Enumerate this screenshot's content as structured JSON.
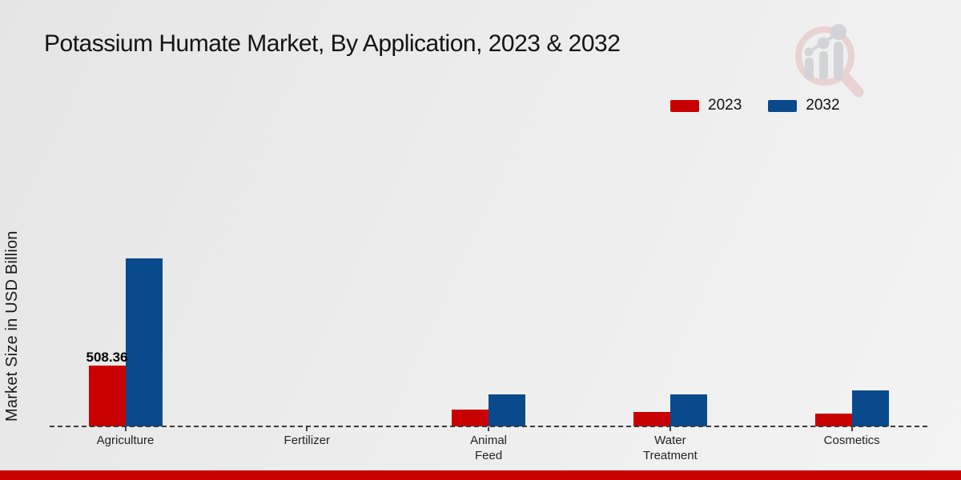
{
  "page": {
    "title": "Potassium Humate Market, By Application, 2023 & 2032"
  },
  "chart_data": {
    "type": "bar",
    "title": "Potassium Humate Market, By Application, 2023 & 2032",
    "xlabel": "",
    "ylabel": "Market Size in USD Billion",
    "unit": "USD Billion",
    "categories": [
      "Agriculture",
      "Fertilizer",
      "Animal Feed",
      "Water Treatment",
      "Cosmetics"
    ],
    "category_label_lines": [
      [
        "Agriculture"
      ],
      [
        "Fertilizer"
      ],
      [
        "Animal",
        "Feed"
      ],
      [
        "Water",
        "Treatment"
      ],
      [
        "Cosmetics"
      ]
    ],
    "series": [
      {
        "name": "2023",
        "color": "#c80000",
        "values": [
          508.36,
          0,
          141,
          120,
          104
        ],
        "data_labels": [
          "508.36",
          "",
          "",
          "",
          ""
        ]
      },
      {
        "name": "2032",
        "color": "#084a8c",
        "values": [
          1405,
          0,
          268,
          268,
          301
        ],
        "data_labels": [
          "",
          "",
          "",
          "",
          ""
        ]
      }
    ],
    "legend_position": "top-right",
    "grid": false,
    "baseline_style": "dashed",
    "ylim": [
      0,
      1500
    ]
  },
  "footer": {
    "accent_bar_color": "#c80000"
  },
  "watermark": {
    "icon": "magnifier-bar-chart-logo",
    "ring_color": "#e8cdcd",
    "glyph_color": "#d2d3d7"
  }
}
